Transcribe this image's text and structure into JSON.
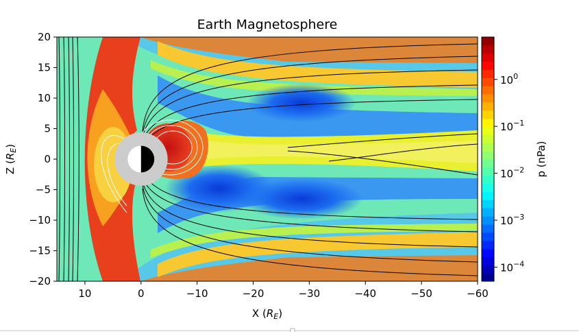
{
  "chart_data": {
    "type": "heatmap",
    "title": "Earth Magnetosphere",
    "xlabel": "X (R_E)",
    "ylabel": "Z (R_E)",
    "xlim": [
      15,
      -60
    ],
    "ylim": [
      -20,
      20
    ],
    "x_ticks": [
      10,
      0,
      -10,
      -20,
      -30,
      -40,
      -50,
      -60
    ],
    "x_tick_labels": [
      "10",
      "0",
      "−10",
      "−20",
      "−30",
      "−40",
      "−50",
      "−60"
    ],
    "y_ticks": [
      20,
      15,
      10,
      5,
      0,
      -5,
      -10,
      -15,
      -20
    ],
    "y_tick_labels": [
      "20",
      "15",
      "10",
      "5",
      "0",
      "−5",
      "−10",
      "−15",
      "−20"
    ],
    "colorbar": {
      "label": "p (nPa)",
      "scale": "log",
      "range": [
        5e-05,
        8
      ],
      "ticks": [
        1,
        0.1,
        0.01,
        0.001,
        0.0001
      ],
      "tick_mantissa": [
        "10",
        "10",
        "10",
        "10",
        "10"
      ],
      "tick_exponents": [
        "0",
        "−1",
        "−2",
        "−3",
        "−4"
      ],
      "colormap": "jet"
    },
    "planet_center": [
      0,
      0
    ],
    "planet_radius": 2.5
  }
}
